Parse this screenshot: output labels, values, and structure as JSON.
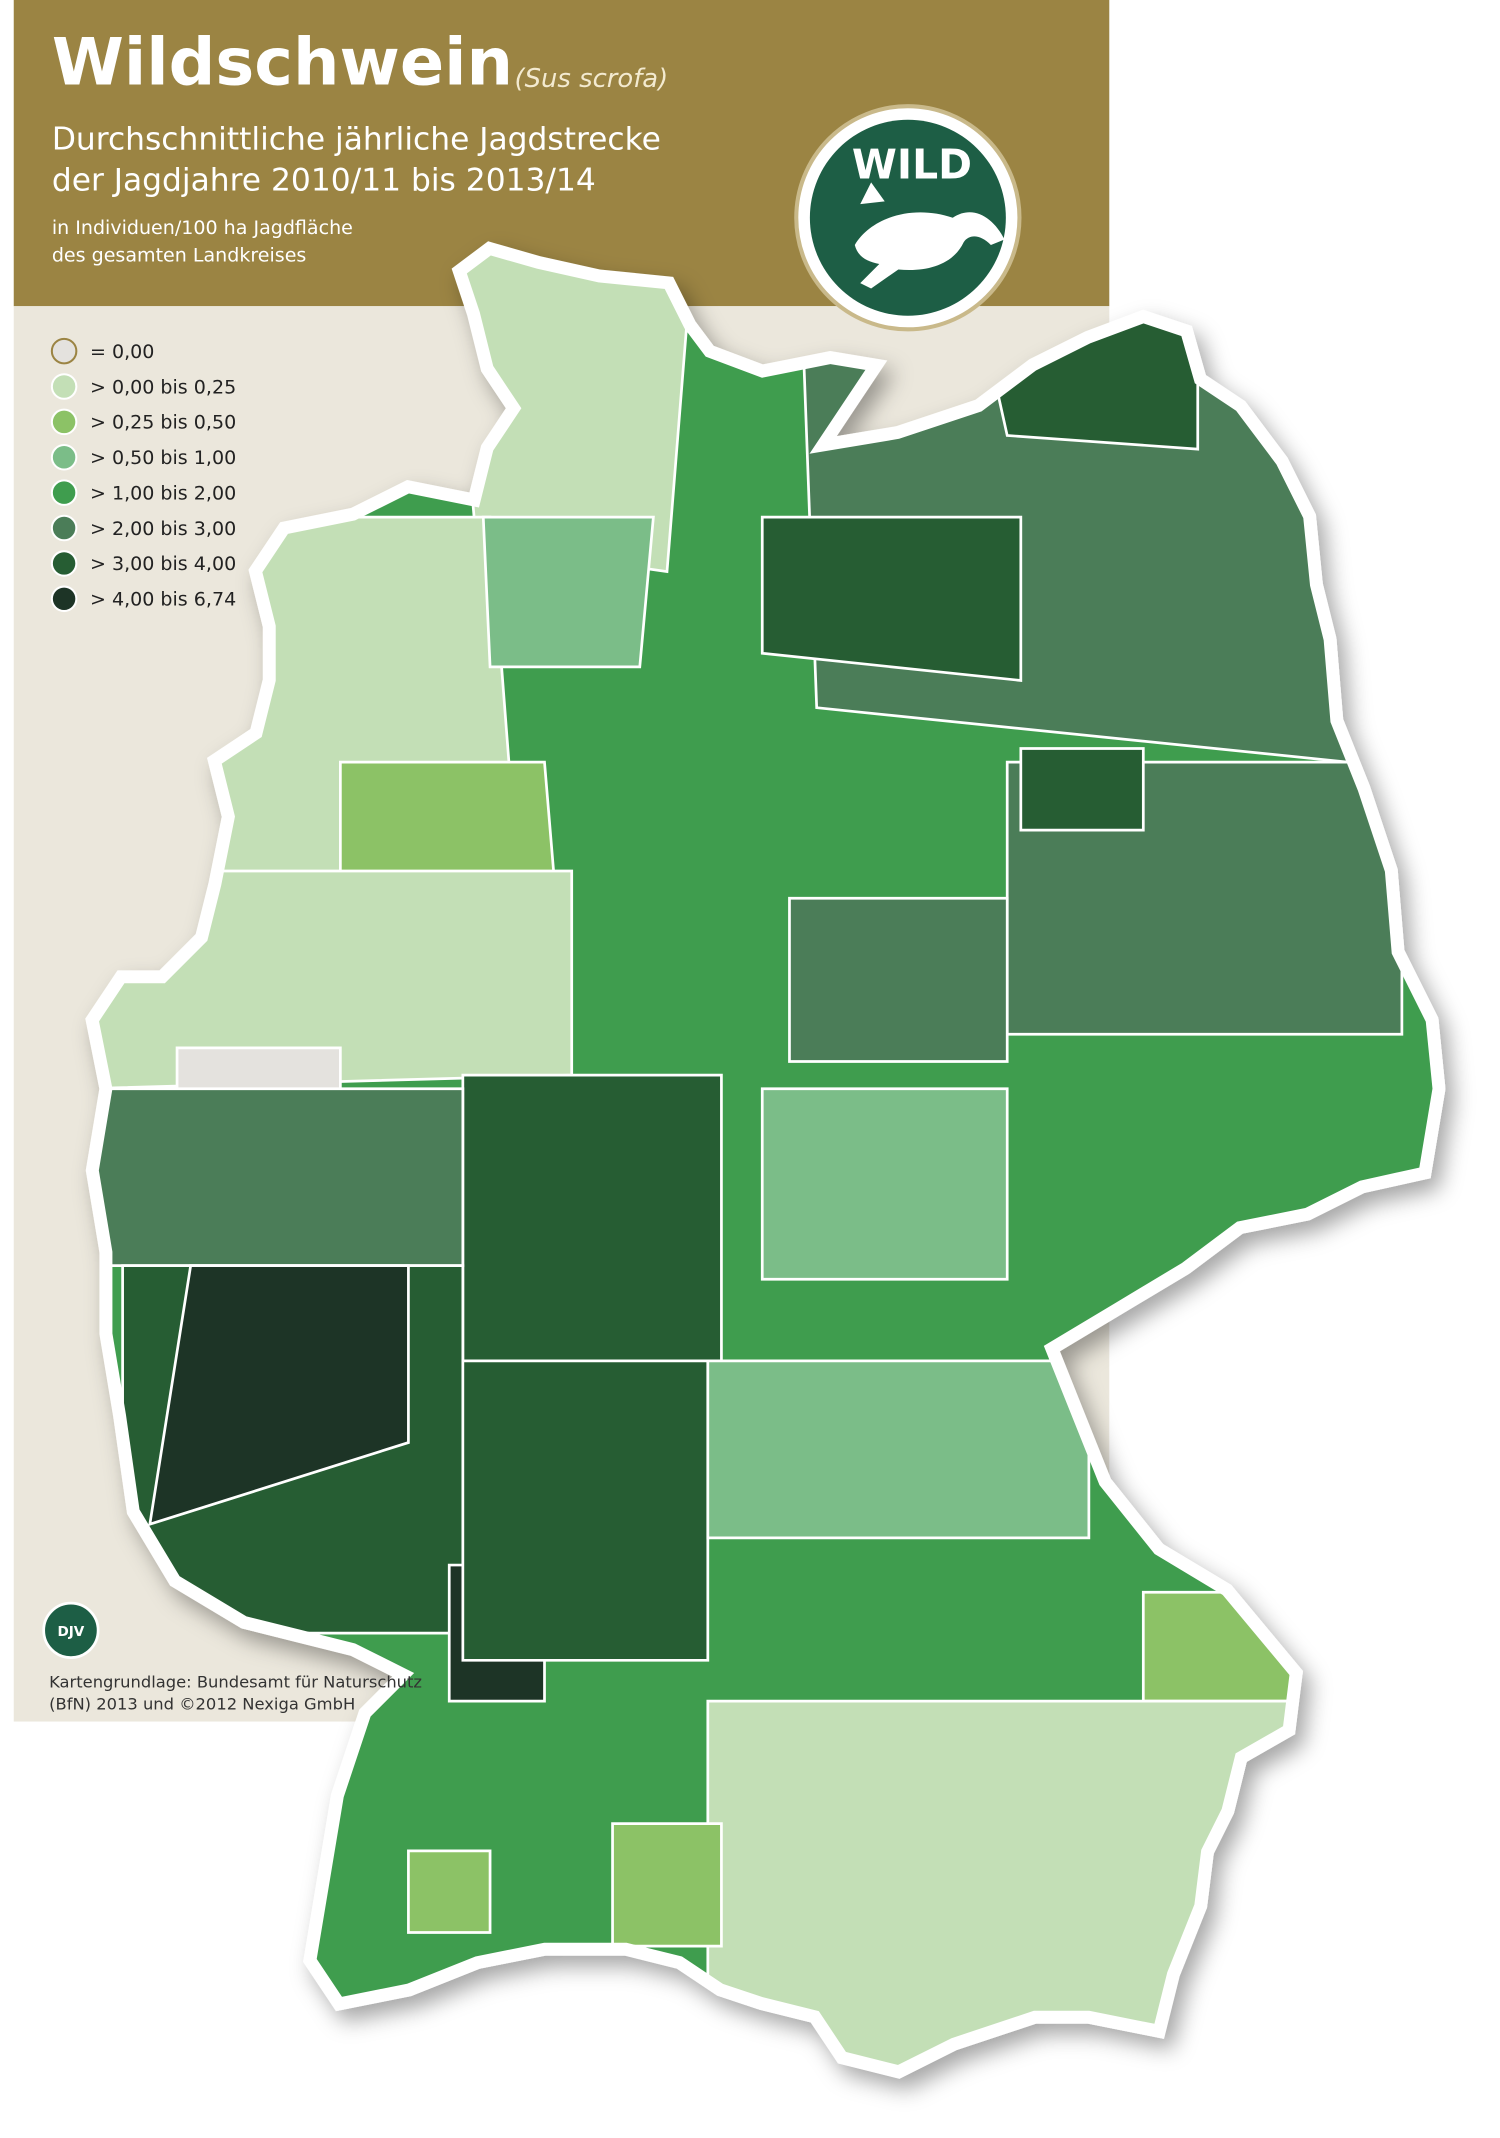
{
  "header": {
    "title": "Wildschwein",
    "species": "(Sus scrofa)",
    "subtitle": [
      "Durchschnittliche jährliche Jagdstrecke",
      "der Jagdjahre 2010/11 bis 2013/14"
    ],
    "unit": [
      "in Individuen/100 ha Jagdfläche",
      "des gesamten Landkreises"
    ]
  },
  "logo": {
    "text": "WILD"
  },
  "legend": {
    "items": [
      {
        "label": "= 0,00",
        "color": "#e4e2de"
      },
      {
        "label": "> 0,00  bis  0,25",
        "color": "#c3dfb6"
      },
      {
        "label": "> 0,25  bis  0,50",
        "color": "#8cc266"
      },
      {
        "label": "> 0,50  bis  1,00",
        "color": "#7bbd88"
      },
      {
        "label": "> 1,00  bis  2,00",
        "color": "#3f9d4e"
      },
      {
        "label": "> 2,00  bis  3,00",
        "color": "#4b7d58"
      },
      {
        "label": "> 3,00  bis  4,00",
        "color": "#265d33"
      },
      {
        "label": "> 4,00  bis  6,74",
        "color": "#1d3426"
      }
    ]
  },
  "footer": {
    "badge": "DJV",
    "credits": [
      "Kartengrundlage: Bundesamt für Naturschutz",
      "(BfN) 2013 und ©2012 Nexiga GmbH"
    ]
  }
}
